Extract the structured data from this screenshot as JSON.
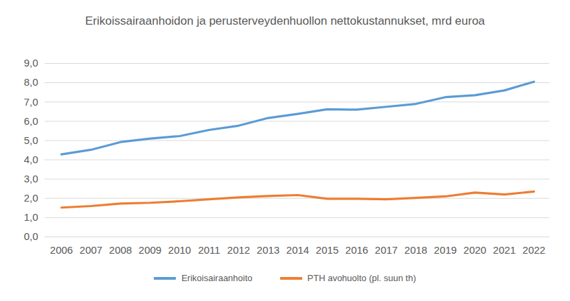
{
  "chart_data": {
    "type": "line",
    "title": "Erikoissairaanhoidon ja perusterveydenhuollon nettokustannukset, mrd euroa",
    "categories": [
      "2006",
      "2007",
      "2008",
      "2009",
      "2010",
      "2011",
      "2012",
      "2013",
      "2014",
      "2015",
      "2016",
      "2017",
      "2018",
      "2019",
      "2020",
      "2021",
      "2022"
    ],
    "series": [
      {
        "name": "Erikoisairaanhoito",
        "color": "#5b9bd5",
        "values": [
          4.28,
          4.52,
          4.92,
          5.1,
          5.23,
          5.55,
          5.77,
          6.17,
          6.38,
          6.62,
          6.6,
          6.75,
          6.9,
          7.25,
          7.35,
          7.6,
          8.05
        ]
      },
      {
        "name": "PTH avohuolto (pl. suun th)",
        "color": "#ed7d31",
        "values": [
          1.52,
          1.6,
          1.73,
          1.77,
          1.85,
          1.95,
          2.05,
          2.12,
          2.17,
          1.98,
          1.98,
          1.95,
          2.02,
          2.1,
          2.3,
          2.2,
          2.35
        ]
      }
    ],
    "ylim": [
      0,
      9
    ],
    "yticks": [
      {
        "value": 0,
        "label": "0,0"
      },
      {
        "value": 1,
        "label": "1,0"
      },
      {
        "value": 2,
        "label": "2,0"
      },
      {
        "value": 3,
        "label": "3,0"
      },
      {
        "value": 4,
        "label": "4,0"
      },
      {
        "value": 5,
        "label": "5,0"
      },
      {
        "value": 6,
        "label": "6,0"
      },
      {
        "value": 7,
        "label": "7,0"
      },
      {
        "value": 8,
        "label": "8,0"
      },
      {
        "value": 9,
        "label": "9,0"
      }
    ],
    "grid": true,
    "legend": "bottom"
  }
}
